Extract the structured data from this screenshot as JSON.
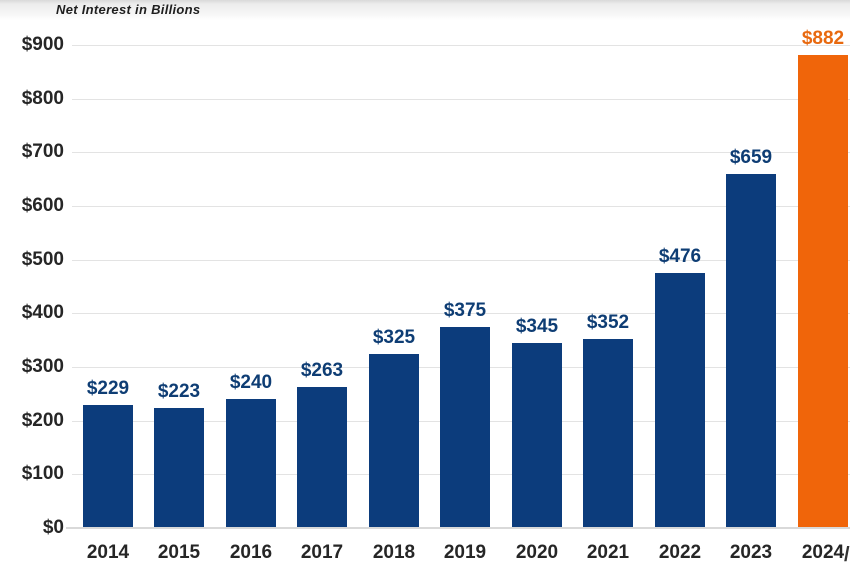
{
  "chart_data": {
    "type": "bar",
    "title": "Net Interest in Billions",
    "categories": [
      "2014",
      "2015",
      "2016",
      "2017",
      "2018",
      "2019",
      "2020",
      "2021",
      "2022",
      "2023",
      "2024"
    ],
    "values": [
      229,
      223,
      240,
      263,
      325,
      375,
      345,
      352,
      476,
      659,
      882
    ],
    "bar_value_labels": [
      "$229",
      "$223",
      "$240",
      "$263",
      "$325",
      "$375",
      "$345",
      "$352",
      "$476",
      "$659",
      "$882"
    ],
    "highlight_index": 10,
    "xlabel": "",
    "ylabel": "",
    "ylim": [
      0,
      900
    ],
    "ytick_interval": 100,
    "ytick_labels": [
      "$0",
      "$100",
      "$200",
      "$300",
      "$400",
      "$500",
      "$600",
      "$700",
      "$800",
      "$900"
    ],
    "grid": true,
    "legend": "none",
    "clipped_glyph_after_last_category": "/",
    "colors": {
      "bar": "#0c3c7c",
      "bar_highlight": "#f0650a",
      "value_label": "#0e3d74",
      "value_label_highlight": "#e8690f",
      "axis_text": "#262626",
      "gridline": "#e3e3e3",
      "axis_line": "#d9d9d9",
      "clipped_glyph_color": "#333333"
    }
  }
}
